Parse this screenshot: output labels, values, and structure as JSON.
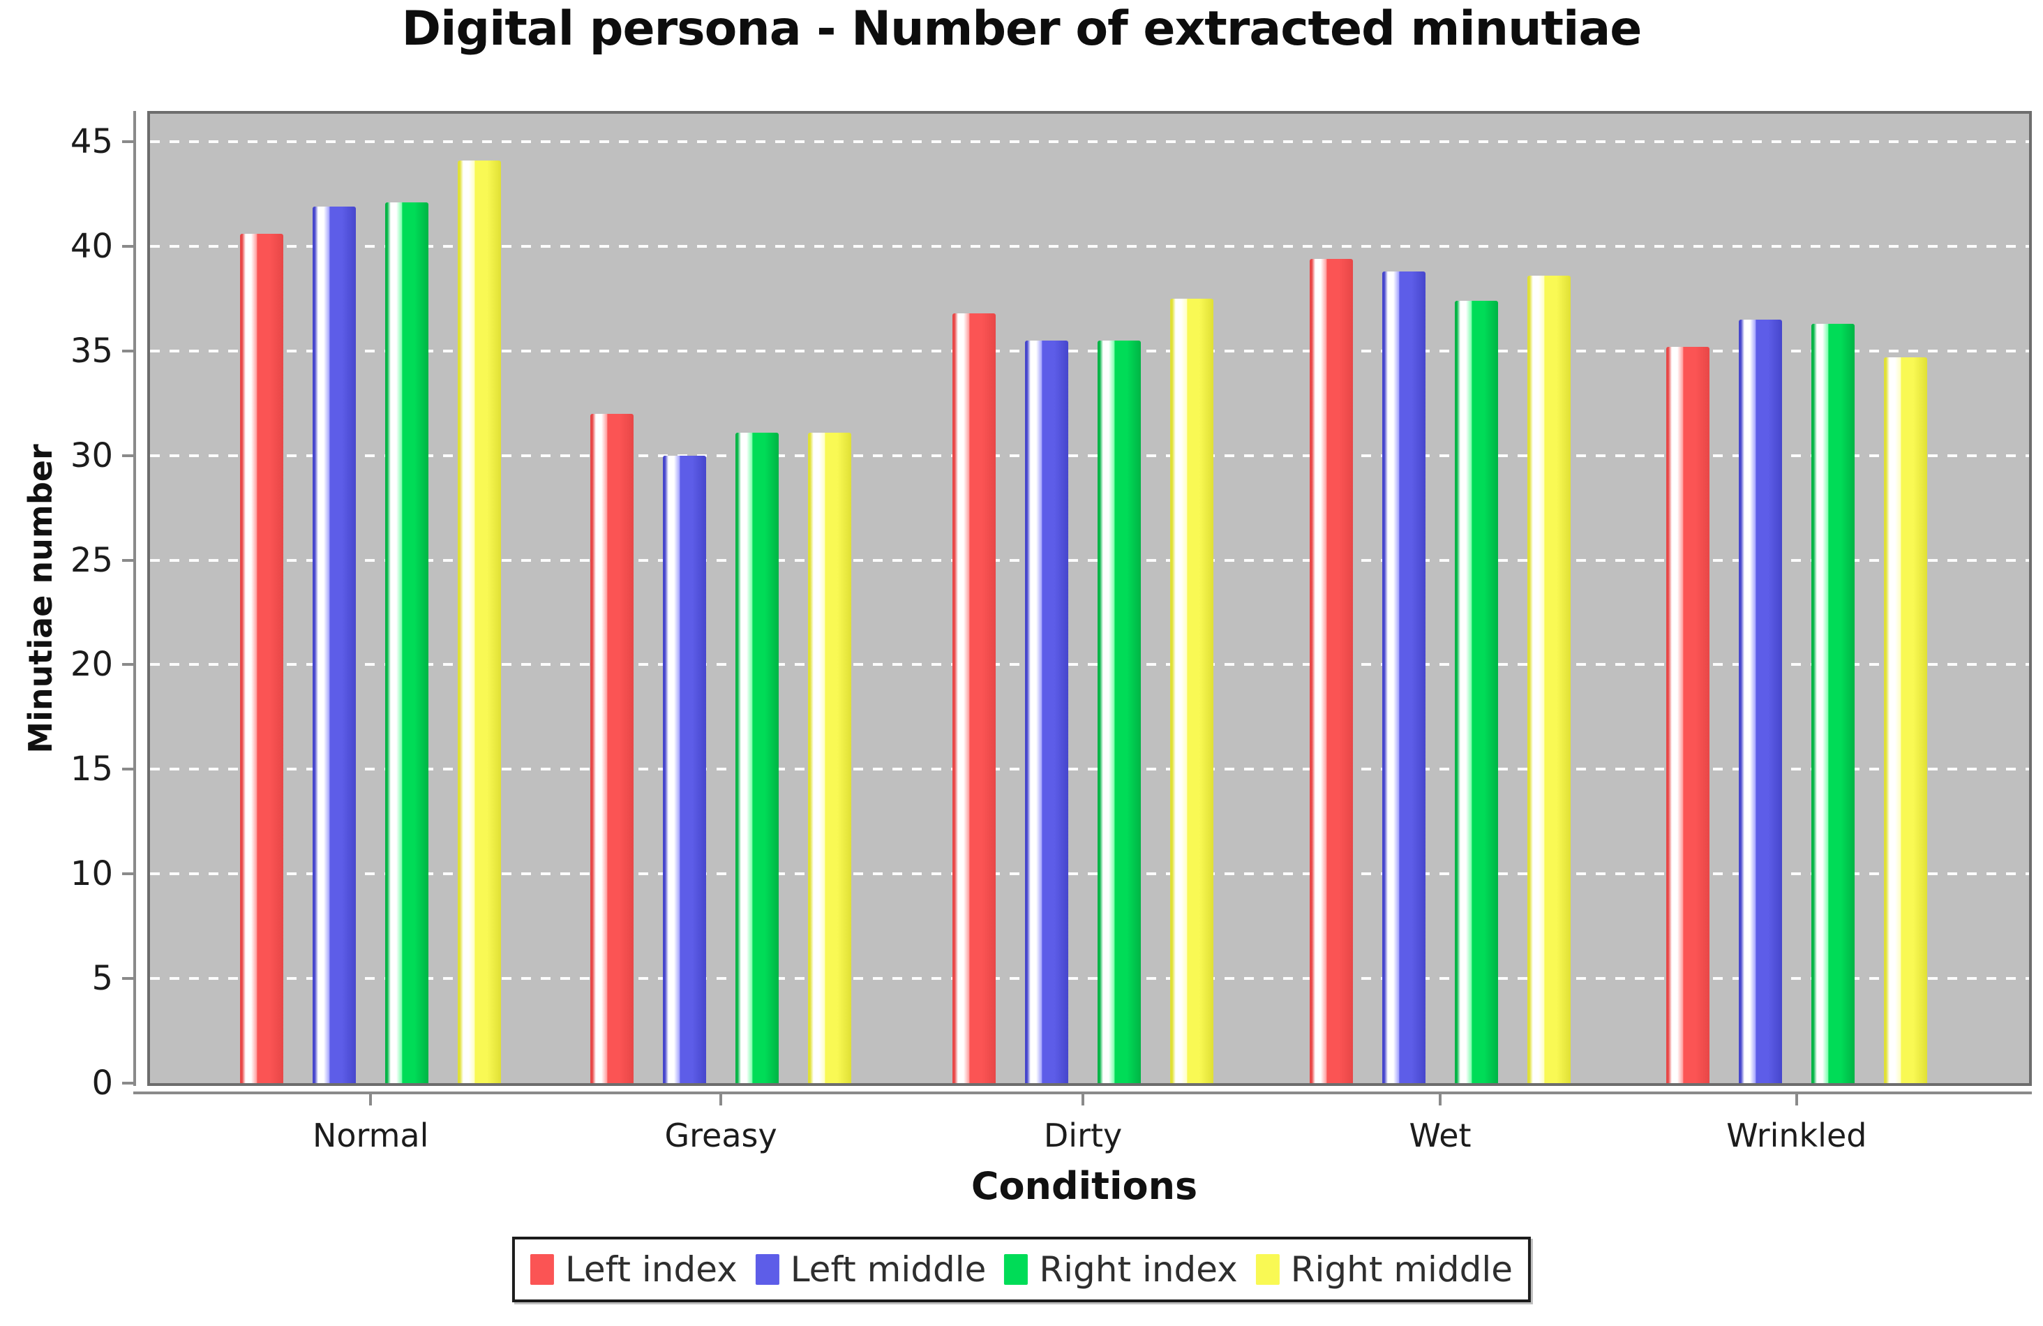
{
  "title": "Digital persona - Number of extracted minutiae",
  "colors": {
    "plot_background": "#bfbfbf",
    "plot_border": "#6d6d6d",
    "gridline": "#ffffff",
    "axis": "#8a8a8a",
    "text": "#1c1c1c"
  },
  "chart_data": {
    "type": "bar",
    "title": "Digital persona - Number of extracted minutiae",
    "xlabel": "Conditions",
    "ylabel": "Minutiae number",
    "ylim": [
      0,
      46.3
    ],
    "yticks": [
      0,
      5,
      10,
      15,
      20,
      25,
      30,
      35,
      40,
      45
    ],
    "grid": "horizontal white dashed lines on gray panel",
    "legend_position": "bottom",
    "categories": [
      "Normal",
      "Greasy",
      "Dirty",
      "Wet",
      "Wrinkled"
    ],
    "series": [
      {
        "name": "Left index",
        "color": "#fb5454",
        "color_dark": "#e84747",
        "color_light": "#ff9c9c",
        "values": [
          40.6,
          32.0,
          36.8,
          39.4,
          35.2
        ]
      },
      {
        "name": "Left middle",
        "color": "#5d5de8",
        "color_dark": "#4646cc",
        "color_light": "#a3a3ff",
        "values": [
          41.9,
          30.0,
          35.5,
          38.8,
          36.5
        ]
      },
      {
        "name": "Right index",
        "color": "#00dc57",
        "color_dark": "#00b445",
        "color_light": "#7dffae",
        "values": [
          42.1,
          31.1,
          35.5,
          37.4,
          36.3
        ]
      },
      {
        "name": "Right middle",
        "color": "#f9f954",
        "color_dark": "#e0e035",
        "color_light": "#ffffc4",
        "values": [
          44.1,
          31.1,
          37.5,
          38.6,
          34.7
        ]
      }
    ]
  }
}
